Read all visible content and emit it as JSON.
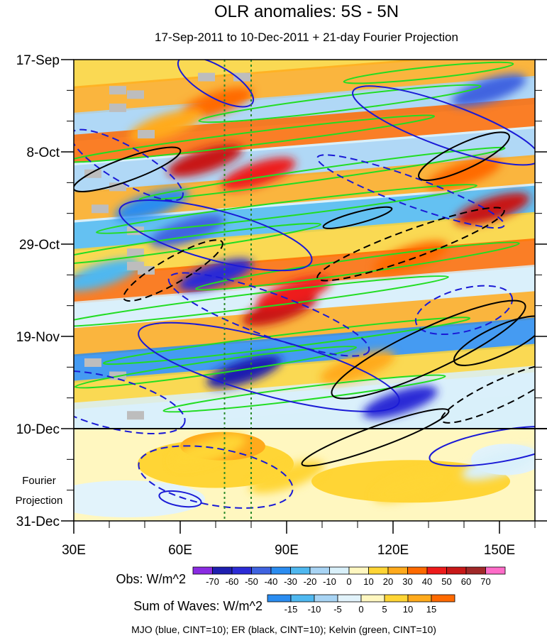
{
  "chart_data": {
    "type": "heatmap",
    "title": "OLR anomalies: 5S - 5N",
    "subtitle": "17-Sep-2011 to 10-Dec-2011 + 21-day Fourier Projection",
    "x_axis": {
      "range": [
        30,
        160
      ],
      "ticks": [
        30,
        60,
        90,
        120,
        150
      ],
      "tick_labels": [
        "30E",
        "60E",
        "90E",
        "120E",
        "150E"
      ]
    },
    "y_axis": {
      "range_days": [
        0,
        105
      ],
      "ticks_days": [
        0,
        21,
        42,
        63,
        84,
        105
      ],
      "tick_labels": [
        "17-Sep",
        "8-Oct",
        "29-Oct",
        "19-Nov",
        "10-Dec",
        "31-Dec"
      ]
    },
    "projection_start_day": 84,
    "projection_label": [
      "Fourier",
      "Projection"
    ],
    "reference_lines_lon": [
      72.5,
      80
    ],
    "obs_legend": {
      "title": "Obs: W/m^2",
      "levels": [
        -70,
        -60,
        -50,
        -40,
        -30,
        -20,
        -10,
        0,
        10,
        20,
        30,
        40,
        50,
        60,
        70
      ],
      "colors": [
        "#8a2be2",
        "#1f1fb0",
        "#2b2bd6",
        "#3f63e0",
        "#2a8cf0",
        "#4fb8f0",
        "#a8d4f4",
        "#d9f0fa",
        "#fff7c0",
        "#ffd535",
        "#ffaa1c",
        "#ff6a00",
        "#ee1b1b",
        "#c81818",
        "#a02828",
        "#ff6cc8"
      ]
    },
    "waves_legend": {
      "title": "Sum of Waves: W/m^2",
      "levels": [
        -15,
        -10,
        -5,
        0,
        5,
        10,
        15
      ],
      "colors": [
        "#2a8cf0",
        "#4fb8f0",
        "#a8d4f4",
        "#e2f3fb",
        "#fff7c0",
        "#ffd535",
        "#ffaa1c",
        "#ff6a00"
      ]
    },
    "contour_note": "MJO (blue, CINT=10); ER (black, CINT=10); Kelvin (green, CINT=10)",
    "contour_series": [
      {
        "name": "MJO",
        "color": "#1a1ad6",
        "cint": 10
      },
      {
        "name": "ER",
        "color": "#000000",
        "cint": 10
      },
      {
        "name": "Kelvin",
        "color": "#22dd22",
        "cint": 10
      }
    ],
    "anomaly_blobs": [
      {
        "lon": 70,
        "day": 49,
        "value": -60
      },
      {
        "lon": 78,
        "day": 71,
        "value": -70
      },
      {
        "lon": 62,
        "day": 39,
        "value": -50
      },
      {
        "lon": 52,
        "day": 33,
        "value": -40
      },
      {
        "lon": 122,
        "day": 78,
        "value": -60
      },
      {
        "lon": 147,
        "day": 7,
        "value": -50
      },
      {
        "lon": 38,
        "day": 49,
        "value": -30
      },
      {
        "lon": 67,
        "day": 23,
        "value": 50
      },
      {
        "lon": 82,
        "day": 26,
        "value": 40
      },
      {
        "lon": 88,
        "day": 57,
        "value": 50
      },
      {
        "lon": 92,
        "day": 53,
        "value": 40
      },
      {
        "lon": 148,
        "day": 34,
        "value": 50
      },
      {
        "lon": 140,
        "day": 26,
        "value": 30
      },
      {
        "lon": 125,
        "day": 45,
        "value": 30
      },
      {
        "lon": 70,
        "day": 10,
        "value": 30
      },
      {
        "lon": 56,
        "day": 15,
        "value": 20
      },
      {
        "lon": 110,
        "day": 70,
        "value": 20
      },
      {
        "lon": 68,
        "day": 89,
        "value": 15
      },
      {
        "lon": 90,
        "day": 95,
        "value": 10
      },
      {
        "lon": 125,
        "day": 97,
        "value": 10
      },
      {
        "lon": 150,
        "day": 92,
        "value": -10
      }
    ]
  }
}
